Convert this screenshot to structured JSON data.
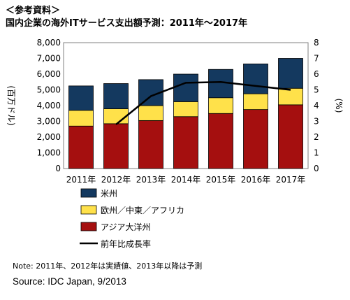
{
  "header_tag": "＜参考資料＞",
  "chart_data": {
    "type": "bar",
    "title": "国内企業の海外ITサービス支出額予測：2011年～2017年",
    "categories": [
      "2011年",
      "2012年",
      "2013年",
      "2014年",
      "2015年",
      "2016年",
      "2017年"
    ],
    "series": [
      {
        "name": "アジア大洋州",
        "kind": "bar",
        "color": "#a50f0f",
        "values": [
          2700,
          2850,
          3050,
          3300,
          3500,
          3750,
          4050
        ]
      },
      {
        "name": "欧州／中東／アフリカ",
        "kind": "bar",
        "color": "#ffe14a",
        "values": [
          1000,
          950,
          950,
          950,
          1000,
          1000,
          1050
        ]
      },
      {
        "name": "米州",
        "kind": "bar",
        "color": "#14395f",
        "values": [
          1550,
          1600,
          1650,
          1750,
          1800,
          1900,
          1900
        ]
      },
      {
        "name": "前年比成長率",
        "kind": "line",
        "axis": "right",
        "color": "#000000",
        "values": [
          null,
          2.8,
          4.6,
          5.45,
          5.5,
          5.25,
          5.0
        ]
      }
    ],
    "ylabel": "(百万ドル)",
    "y2label": "(%)",
    "ylim": [
      0,
      8000
    ],
    "y2lim": [
      0,
      8
    ],
    "yticks": [
      "0",
      "1,000",
      "2,000",
      "3,000",
      "4,000",
      "5,000",
      "6,000",
      "7,000",
      "8,000"
    ],
    "y2ticks": [
      "0",
      "1",
      "2",
      "3",
      "4",
      "5",
      "6",
      "7",
      "8"
    ],
    "stacked": true,
    "grid": false,
    "legend_position": "bottom-left"
  },
  "note": "Note: 2011年、2012年は実績値、2013年以降は予測",
  "source": "Source: IDC Japan, 9/2013"
}
